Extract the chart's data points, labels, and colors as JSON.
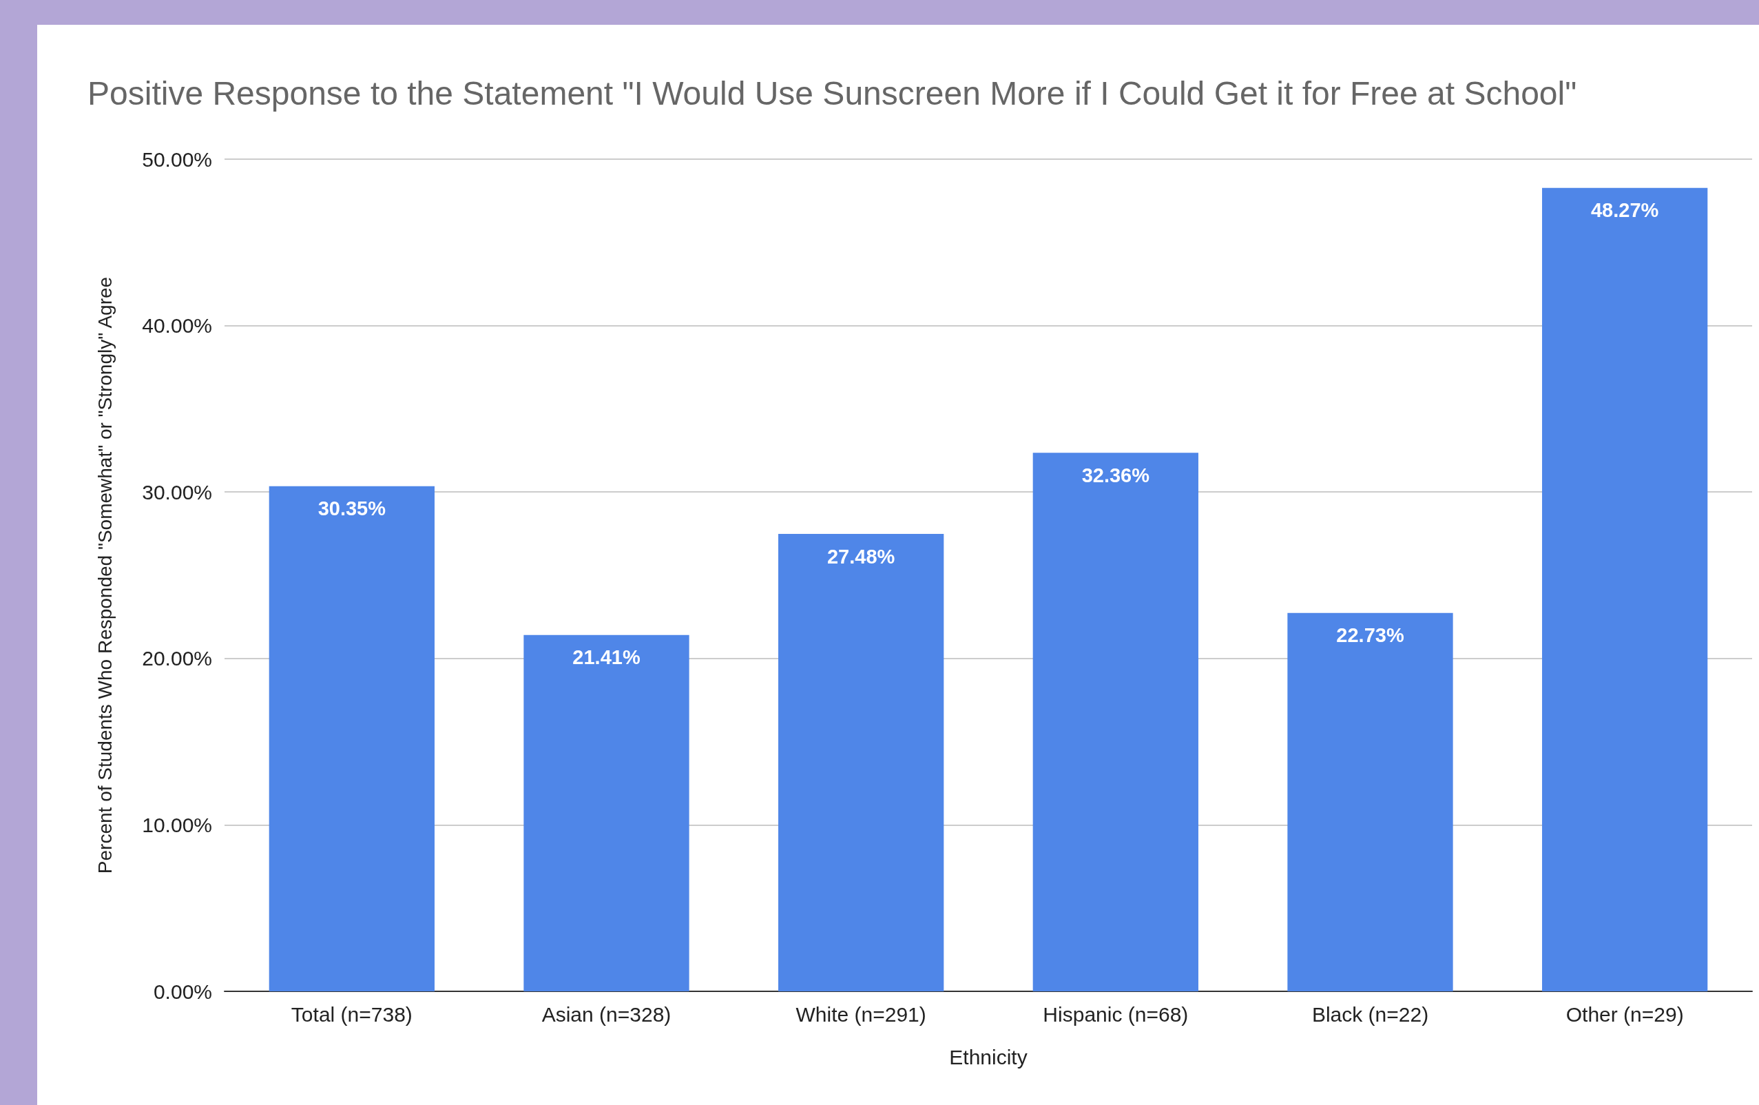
{
  "chart_data": {
    "type": "bar",
    "title": "Positive Response to the Statement \"I Would Use Sunscreen More if I Could Get it for Free at School\"",
    "xlabel": "Ethnicity",
    "ylabel": "Percent of Students Who Responded \"Somewhat\" or \"Strongly\" Agree",
    "categories": [
      "Total (n=738)",
      "Asian (n=328)",
      "White (n=291)",
      "Hispanic (n=68)",
      "Black (n=22)",
      "Other (n=29)"
    ],
    "values": [
      30.35,
      21.41,
      27.48,
      32.36,
      22.73,
      48.27
    ],
    "value_labels": [
      "30.35%",
      "21.41%",
      "27.48%",
      "32.36%",
      "22.73%",
      "48.27%"
    ],
    "color": "#4f86e8",
    "ylim": [
      0,
      50
    ],
    "yticks": [
      {
        "value": 0,
        "label": "0.00%"
      },
      {
        "value": 10,
        "label": "10.00%"
      },
      {
        "value": 20,
        "label": "20.00%"
      },
      {
        "value": 30,
        "label": "30.00%"
      },
      {
        "value": 40,
        "label": "40.00%"
      },
      {
        "value": 50,
        "label": "50.00%"
      }
    ],
    "grid": "y"
  }
}
